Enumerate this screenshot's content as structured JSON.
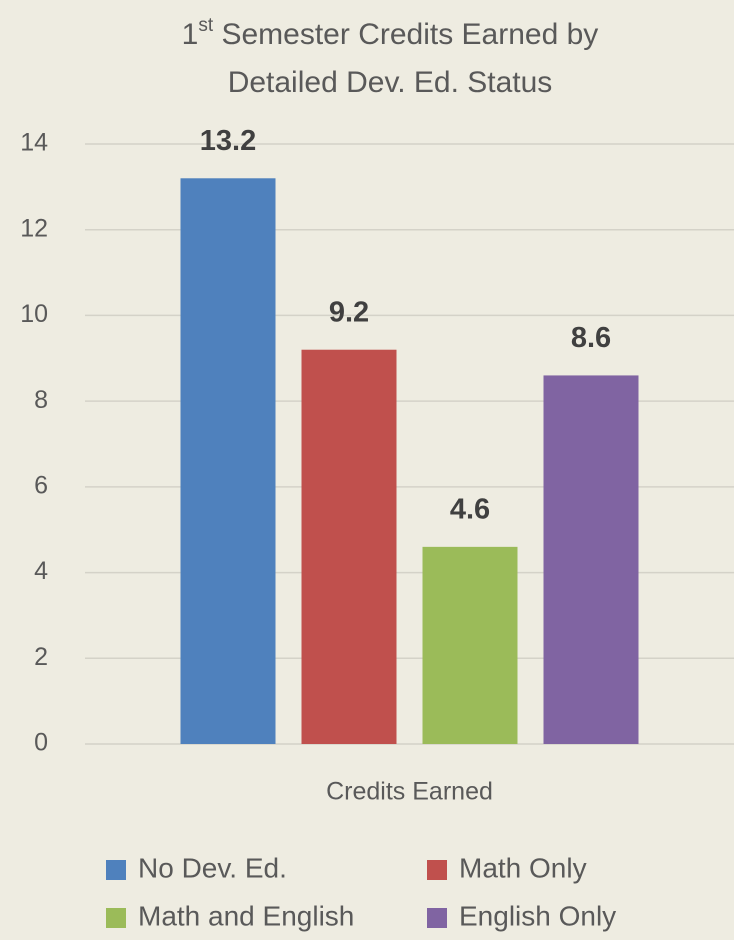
{
  "chart_data": {
    "type": "bar",
    "title": [
      "1",
      "st",
      " Semester Credits Earned by",
      "Detailed Dev. Ed. Status"
    ],
    "categories": [
      "Credits Earned"
    ],
    "series": [
      {
        "name": "No Dev. Ed.",
        "color": "#4f81bd",
        "values": [
          13.2
        ]
      },
      {
        "name": "Math Only",
        "color": "#c0504d",
        "values": [
          9.2
        ]
      },
      {
        "name": "Math and English",
        "color": "#9bbb59",
        "values": [
          4.6
        ]
      },
      {
        "name": "English Only",
        "color": "#8064a2",
        "values": [
          8.6
        ]
      }
    ],
    "ylim": [
      0,
      14
    ],
    "yticks": [
      0,
      2,
      4,
      6,
      8,
      10,
      12,
      14
    ],
    "grid": true,
    "legend": "bottom"
  }
}
